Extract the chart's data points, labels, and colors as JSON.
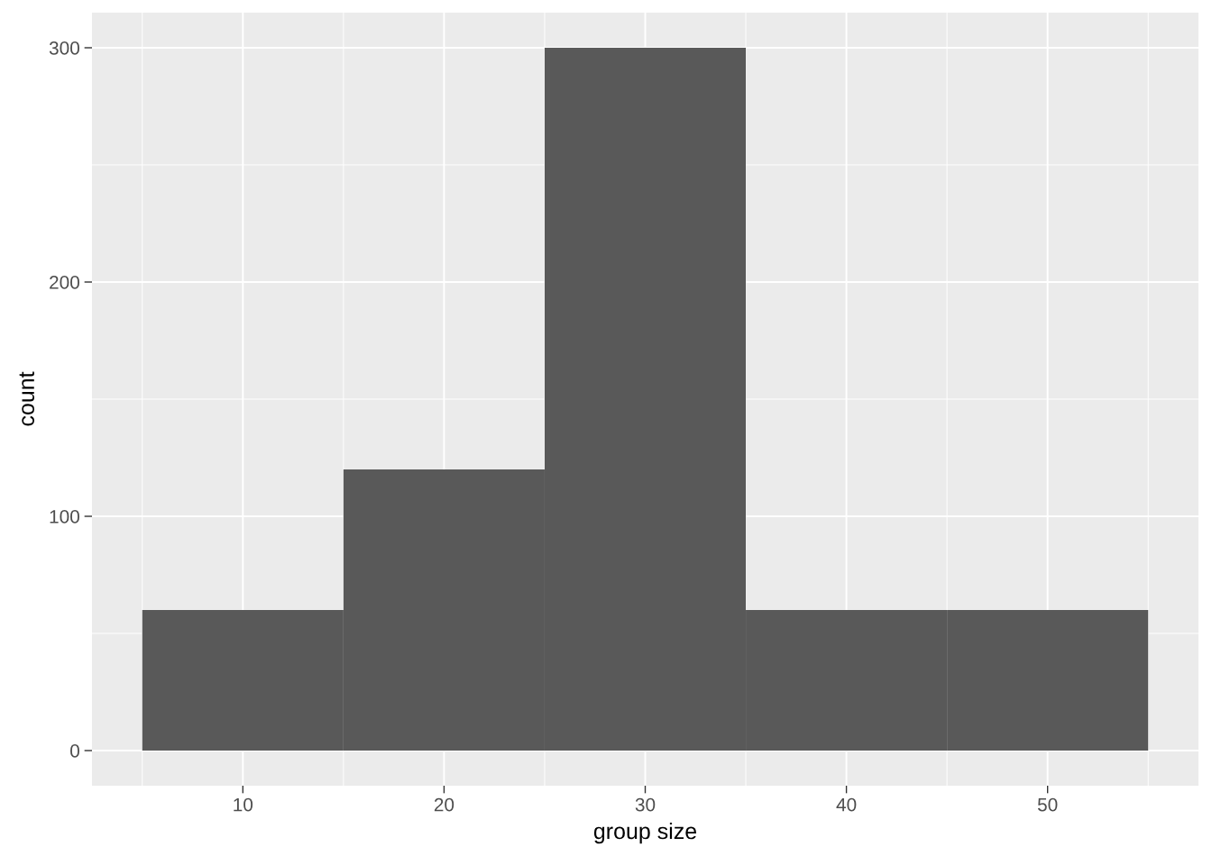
{
  "chart_data": {
    "type": "histogram",
    "xlabel": "group size",
    "ylabel": "count",
    "bins": [
      5,
      15,
      25,
      35,
      45,
      55
    ],
    "values": [
      60,
      120,
      300,
      60,
      60
    ],
    "color": "#595959",
    "xlim": [
      2.5,
      57.5
    ],
    "xticks": [
      10,
      20,
      30,
      40,
      50
    ],
    "ylim": [
      -15,
      315
    ],
    "yticks": [
      0,
      100,
      200,
      300
    ],
    "grid": true
  }
}
